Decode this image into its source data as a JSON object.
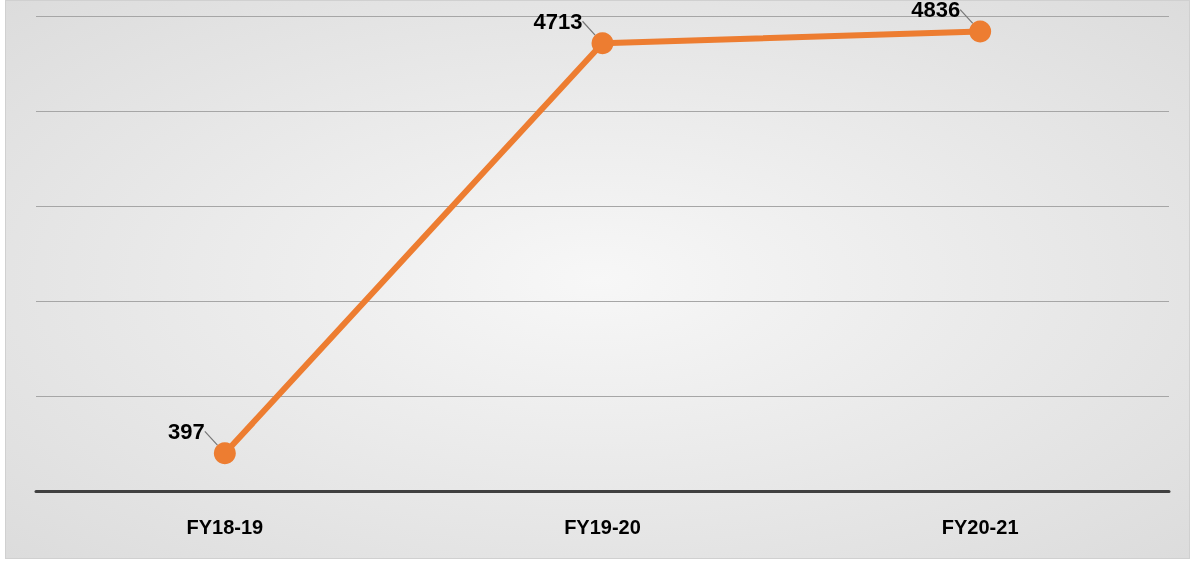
{
  "chart_data": {
    "type": "line",
    "categories": [
      "FY18-19",
      "FY19-20",
      "FY20-21"
    ],
    "series": [
      {
        "color": "#ed7d31",
        "values": [
          397,
          4713,
          4836
        ]
      }
    ],
    "grid": "y",
    "tick_labels": "x",
    "marker": "circle",
    "line_style": "solid",
    "data_labels": true
  }
}
